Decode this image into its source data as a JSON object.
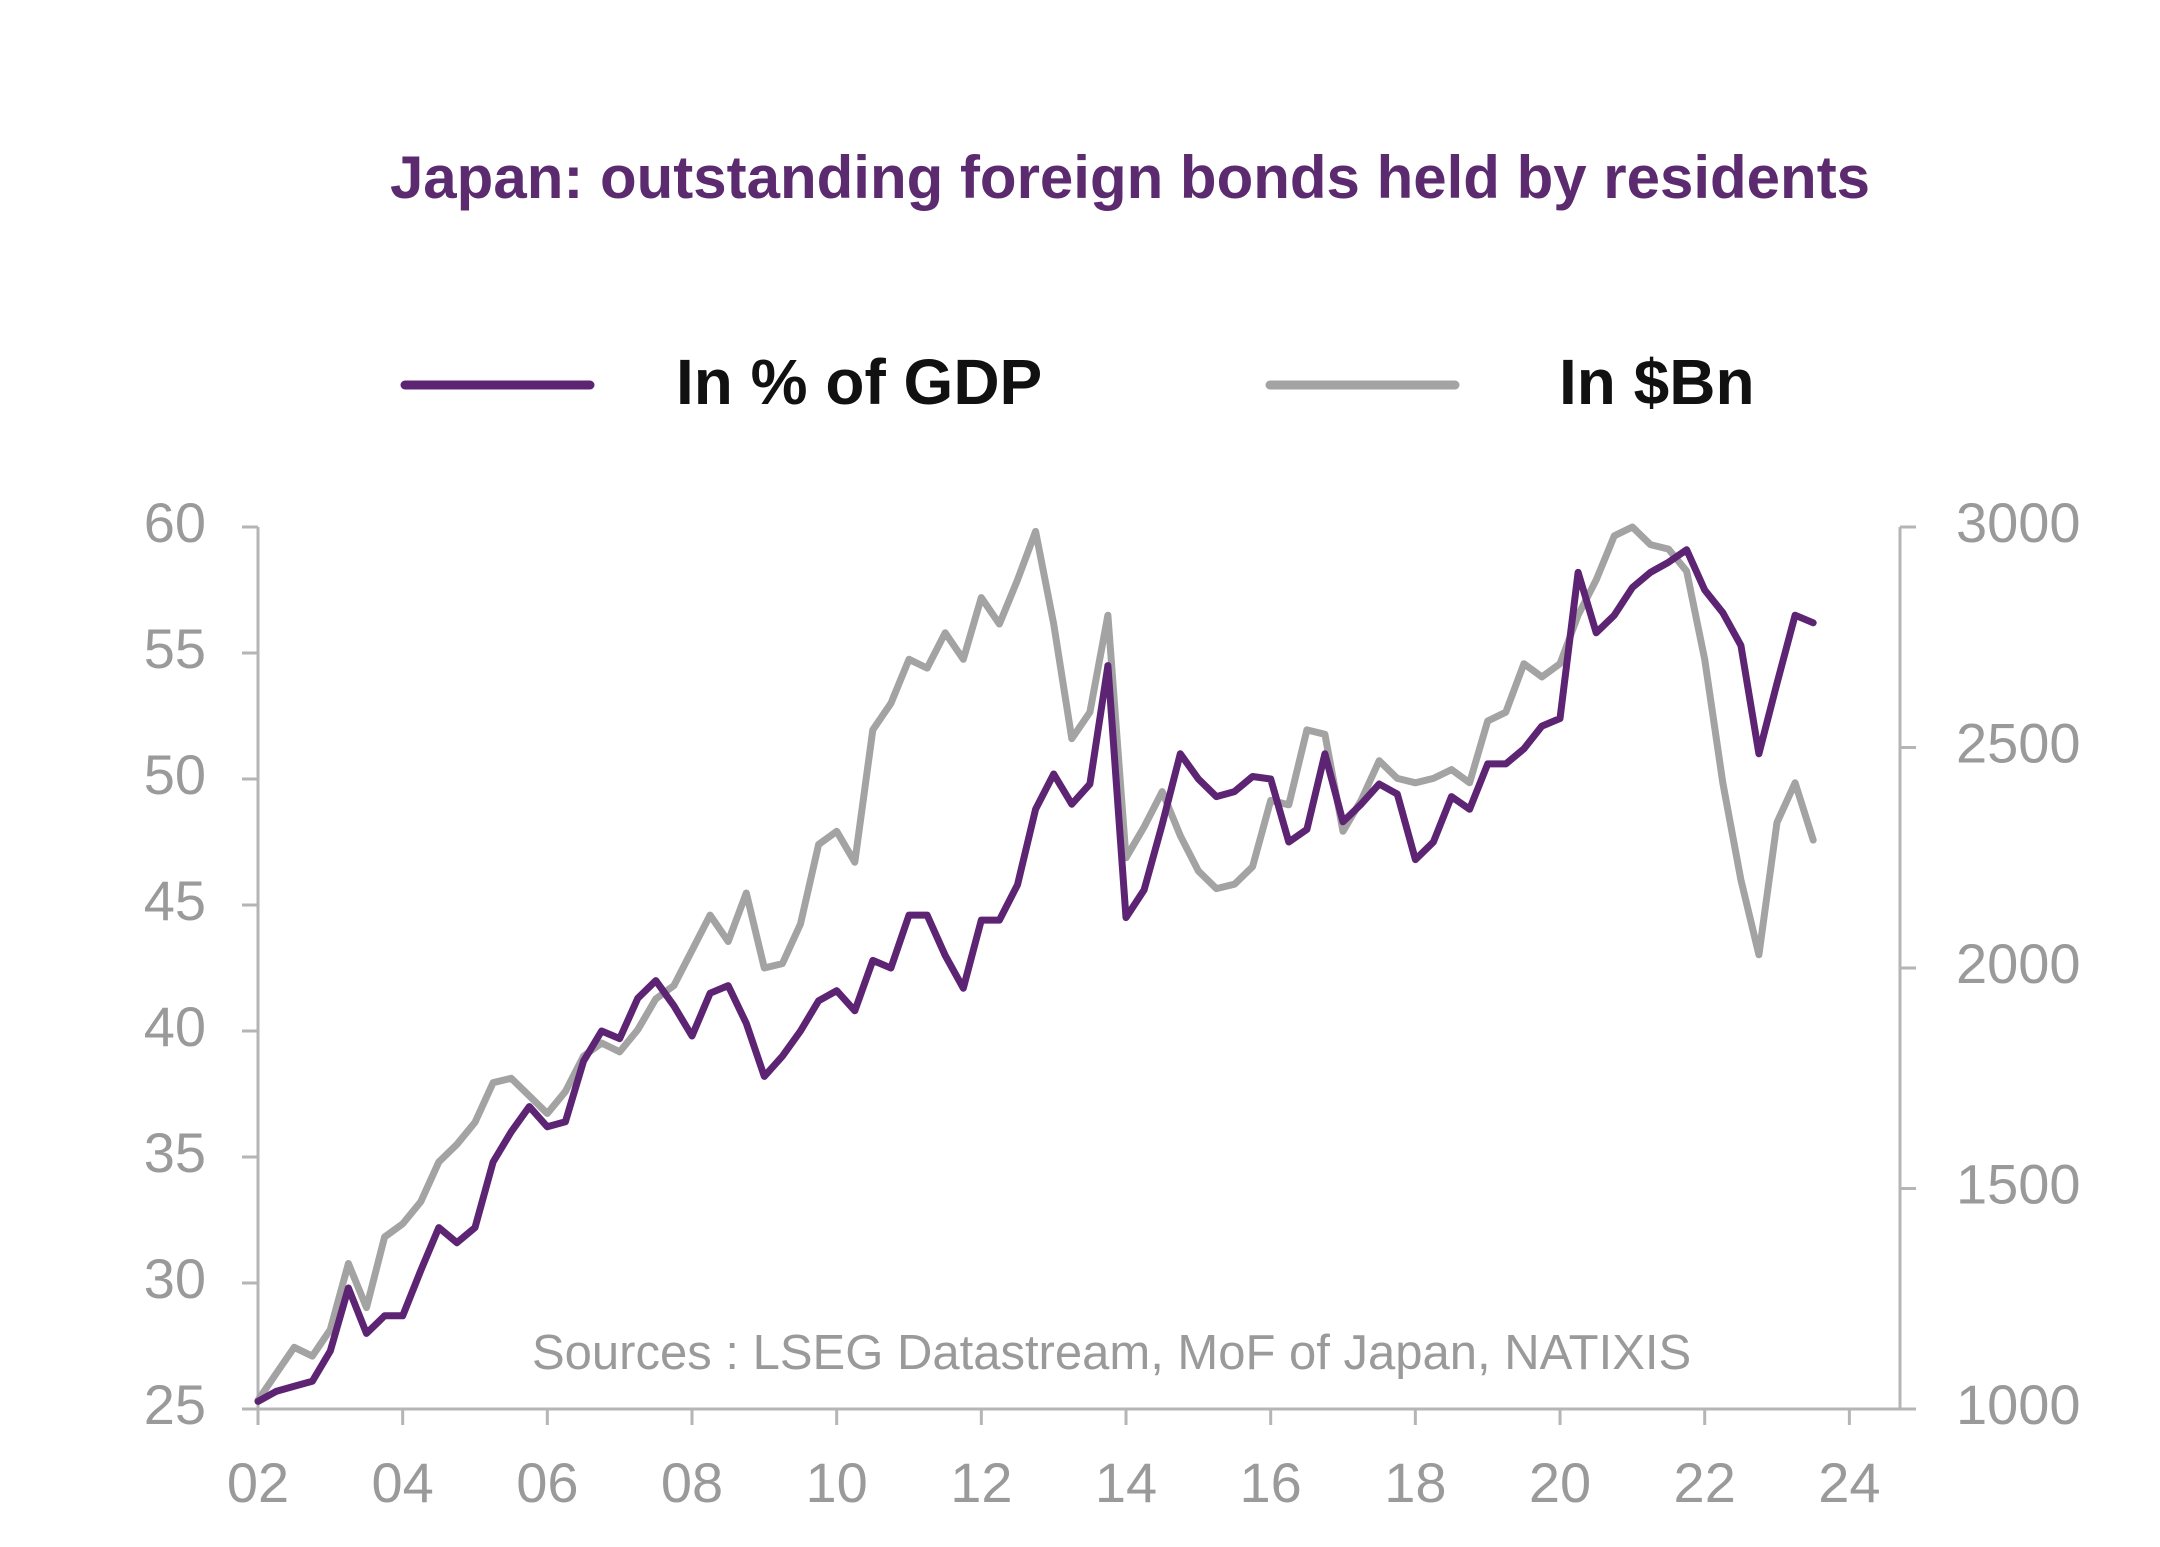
{
  "chart_data": {
    "type": "line",
    "title": "Japan: outstanding foreign bonds held by residents",
    "annotation": "Sources : LSEG Datastream, MoF of Japan, NATIXIS",
    "legend": "top",
    "x": [
      2,
      2.25,
      2.5,
      2.75,
      3,
      3.25,
      3.5,
      3.75,
      4,
      4.25,
      4.5,
      4.75,
      5,
      5.25,
      5.5,
      5.75,
      6,
      6.25,
      6.5,
      6.75,
      7,
      7.25,
      7.5,
      7.75,
      8,
      8.25,
      8.5,
      8.75,
      9,
      9.25,
      9.5,
      9.75,
      10,
      10.25,
      10.5,
      10.75,
      11,
      11.25,
      11.5,
      11.75,
      12,
      12.25,
      12.5,
      12.75,
      13,
      13.25,
      13.5,
      13.75,
      14,
      14.25,
      14.5,
      14.75,
      15,
      15.25,
      15.5,
      15.75,
      16,
      16.25,
      16.5,
      16.75,
      17,
      17.25,
      17.5,
      17.75,
      18,
      18.25,
      18.5,
      18.75,
      19,
      19.25,
      19.5,
      19.75,
      20,
      20.25,
      20.5,
      20.75,
      21,
      21.25,
      21.5,
      21.75,
      22,
      22.25,
      22.5,
      22.75,
      23,
      23.25,
      23.5
    ],
    "series": [
      {
        "name": "In % of GDP",
        "color": "#5c2473",
        "axis": "y",
        "values": [
          25.3,
          25.7,
          25.9,
          26.1,
          27.3,
          29.8,
          28.0,
          28.7,
          28.7,
          30.5,
          32.2,
          31.6,
          32.2,
          34.8,
          36.0,
          37.0,
          36.2,
          36.4,
          38.8,
          40.0,
          39.7,
          41.3,
          42.0,
          41.0,
          39.8,
          41.5,
          41.8,
          40.3,
          38.2,
          39.0,
          40.0,
          41.2,
          41.6,
          40.8,
          42.8,
          42.5,
          44.6,
          44.6,
          43.0,
          41.7,
          44.4,
          44.4,
          45.8,
          48.8,
          50.2,
          49.0,
          49.8,
          54.5,
          44.5,
          45.6,
          48.2,
          51.0,
          50.0,
          49.3,
          49.5,
          50.1,
          50.0,
          47.5,
          48.0,
          51.0,
          48.3,
          49.0,
          49.8,
          49.4,
          46.8,
          47.5,
          49.3,
          48.8,
          50.6,
          50.6,
          51.2,
          52.1,
          52.4,
          58.2,
          55.8,
          56.5,
          57.6,
          58.2,
          58.6,
          59.1,
          57.5,
          56.6,
          55.3,
          51.0,
          53.8,
          56.5,
          56.2
        ]
      },
      {
        "name": "In $Bn",
        "color": "#a3a3a3",
        "axis": "y2",
        "values": [
          1020,
          1080,
          1140,
          1120,
          1180,
          1330,
          1230,
          1390,
          1420,
          1470,
          1560,
          1600,
          1650,
          1740,
          1750,
          1710,
          1670,
          1720,
          1800,
          1830,
          1810,
          1860,
          1930,
          1960,
          2040,
          2120,
          2060,
          2170,
          2000,
          2010,
          2100,
          2280,
          2310,
          2240,
          2540,
          2600,
          2700,
          2680,
          2760,
          2700,
          2840,
          2780,
          2880,
          2990,
          2780,
          2520,
          2580,
          2800,
          2250,
          2320,
          2400,
          2300,
          2220,
          2180,
          2190,
          2230,
          2380,
          2370,
          2540,
          2530,
          2310,
          2380,
          2470,
          2430,
          2420,
          2430,
          2450,
          2420,
          2560,
          2580,
          2690,
          2660,
          2690,
          2800,
          2880,
          2980,
          3000,
          2960,
          2950,
          2900,
          2700,
          2420,
          2200,
          2030,
          2330,
          2420,
          2290
        ]
      }
    ],
    "xlim": [
      2,
      24.7
    ],
    "xticks": [
      {
        "value": 2,
        "label": "02"
      },
      {
        "value": 4,
        "label": "04"
      },
      {
        "value": 6,
        "label": "06"
      },
      {
        "value": 8,
        "label": "08"
      },
      10,
      12,
      14,
      16,
      18,
      20,
      22,
      24
    ],
    "ylim": [
      25,
      60
    ],
    "yticks": [
      25,
      30,
      35,
      40,
      45,
      50,
      55,
      60
    ],
    "y2lim": [
      1000,
      3000
    ],
    "y2ticks": [
      1000,
      1500,
      2000,
      2500,
      3000
    ],
    "grid": false
  }
}
